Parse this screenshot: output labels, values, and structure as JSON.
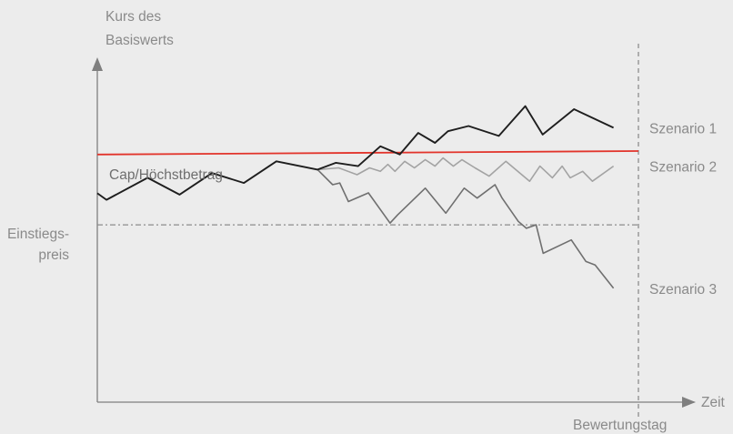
{
  "chart_data": {
    "type": "line",
    "title": "",
    "ylabel_line1": "Kurs des",
    "ylabel_line2": "Basiswerts",
    "xlabel": "Zeit",
    "entry_label_line1": "Einstiegs-",
    "entry_label_line2": "preis",
    "cap_label": "Cap/Höchstbetrag",
    "valuation_day_label": "Bewertungstag",
    "xlim": [
      0,
      100
    ],
    "ylim": [
      0,
      100
    ],
    "entry_level": 51.7,
    "cap_level": [
      72.2,
      73.2
    ],
    "valuation_day_x": 100,
    "colors": {
      "axis": "#7f7f7f",
      "cap": "#e2342b",
      "scenario_1": "#1e1e1e",
      "scenario_2": "#a3a3a3",
      "scenario_3": "#6f6f6f",
      "entry_line": "#8c8c8c",
      "valuation_line": "#8c8c8c"
    },
    "series": [
      {
        "name": "Szenario 1",
        "x": [
          0,
          1.7,
          9.3,
          15.2,
          21.2,
          27.1,
          33.1,
          40.7,
          44.1,
          48.2,
          52.3,
          55.9,
          59.3,
          62.4,
          64.8,
          68.6,
          74.2,
          79.1,
          82.3,
          88.1,
          91.5,
          95.4
        ],
        "y": [
          60.9,
          59.0,
          65.4,
          60.5,
          66.8,
          63.9,
          70.2,
          67.8,
          69.8,
          68.8,
          74.6,
          72.2,
          78.5,
          75.6,
          79.0,
          80.5,
          77.6,
          86.3,
          78.0,
          85.4,
          82.9,
          80.0
        ]
      },
      {
        "name": "Szenario 2",
        "x": [
          40.7,
          44.6,
          48.0,
          50.3,
          52.3,
          53.7,
          55.0,
          56.8,
          58.6,
          60.6,
          62.4,
          63.9,
          65.8,
          67.4,
          69.8,
          72.4,
          75.5,
          79.9,
          81.8,
          84.1,
          85.9,
          87.4,
          89.7,
          91.5,
          95.4
        ],
        "y": [
          67.8,
          68.3,
          66.3,
          68.3,
          67.3,
          69.3,
          67.3,
          70.2,
          68.3,
          70.7,
          68.8,
          71.2,
          68.8,
          70.7,
          68.3,
          65.9,
          70.2,
          64.4,
          68.8,
          65.4,
          68.8,
          65.4,
          67.3,
          64.4,
          68.8
        ]
      },
      {
        "name": "Szenario 3",
        "x": [
          40.7,
          43.5,
          44.8,
          46.4,
          50.1,
          54.1,
          55.5,
          60.6,
          64.4,
          67.8,
          70.2,
          73.5,
          74.8,
          77.8,
          79.3,
          81.1,
          82.4,
          87.6,
          90.3,
          92.0,
          95.4
        ],
        "y": [
          67.8,
          63.4,
          63.9,
          58.5,
          61.0,
          52.2,
          54.6,
          62.4,
          55.1,
          62.4,
          59.5,
          63.4,
          59.5,
          52.7,
          50.7,
          51.7,
          43.4,
          47.3,
          41.0,
          40.0,
          33.2
        ]
      }
    ]
  }
}
